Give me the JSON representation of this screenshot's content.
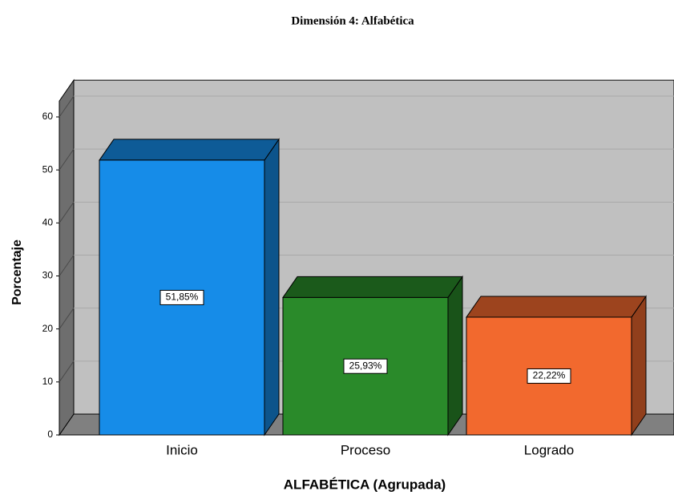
{
  "chart_data": {
    "type": "bar3d",
    "title": "Dimensión 4: Alfabética",
    "xlabel": "ALFABÉTICA (Agrupada)",
    "ylabel": "Porcentaje",
    "categories": [
      "Inicio",
      "Proceso",
      "Logrado"
    ],
    "values": [
      51.85,
      25.93,
      22.22
    ],
    "value_labels": [
      "51,85%",
      "25,93%",
      "22,22%"
    ],
    "colors": [
      "#168ce8",
      "#2a8a2a",
      "#f2692e"
    ],
    "ylim": [
      0,
      63
    ],
    "yticks": [
      0,
      10,
      20,
      30,
      40,
      50,
      60
    ],
    "grid": true
  }
}
